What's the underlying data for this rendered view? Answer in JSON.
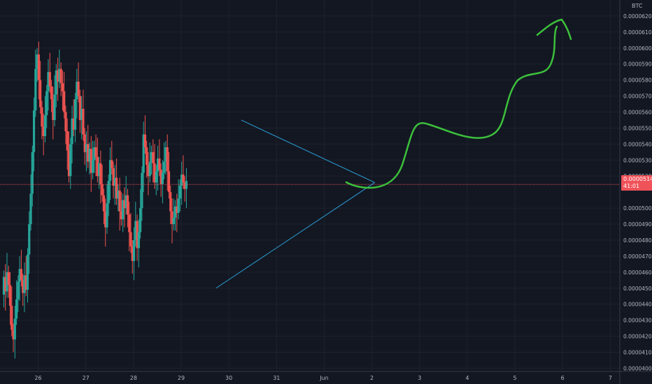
{
  "chart_data": {
    "type": "candlestick",
    "currency_label": "BTC",
    "y_tick_labels": [
      "0.00006200",
      "0.00006100",
      "0.00006000",
      "0.00005900",
      "0.00005800",
      "0.00005700",
      "0.00005600",
      "0.00005500",
      "0.00005400",
      "0.00005300",
      "0.00005200",
      "0.00005000",
      "0.00004900",
      "0.00004800",
      "0.00004700",
      "0.00004600",
      "0.00004500",
      "0.00004400",
      "0.00004300",
      "0.00004200",
      "0.00004100",
      "0.00004000"
    ],
    "y_tick_values": [
      6.2e-05,
      6.1e-05,
      6e-05,
      5.9e-05,
      5.8e-05,
      5.7e-05,
      5.6e-05,
      5.5e-05,
      5.4e-05,
      5.3e-05,
      5.2e-05,
      5e-05,
      4.9e-05,
      4.8e-05,
      4.7e-05,
      4.6e-05,
      4.5e-05,
      4.4e-05,
      4.3e-05,
      4.2e-05,
      4.1e-05,
      4e-05
    ],
    "ylim": [
      3.98e-05,
      6.3e-05
    ],
    "x_tick_labels": [
      "26",
      "27",
      "28",
      "29",
      "30",
      "31",
      "Jun",
      "2",
      "3",
      "4",
      "5",
      "6",
      "7"
    ],
    "x_tick_days": [
      26,
      27,
      28,
      29,
      30,
      31,
      32,
      33,
      34,
      35,
      36,
      37,
      38
    ],
    "xlim": [
      25.2,
      38.2
    ],
    "last_price": {
      "label": "0.00005148",
      "countdown": "41:01",
      "value": 5.148e-05
    },
    "colors": {
      "up": "#26a69a",
      "down": "#ef5350",
      "triangle": "#2a9fd6",
      "arrow": "#3cc03c",
      "price_line": "#f0525a"
    },
    "candles_start_day": 25.28,
    "candles_day_step": 0.0333,
    "candles_oc": [
      [
        4.46e-05,
        4.57e-05
      ],
      [
        4.57e-05,
        4.48e-05
      ],
      [
        4.48e-05,
        4.6e-05
      ],
      [
        4.6e-05,
        4.52e-05
      ],
      [
        4.52e-05,
        4.39e-05
      ],
      [
        4.39e-05,
        4.24e-05
      ],
      [
        4.24e-05,
        4.18e-05
      ],
      [
        4.18e-05,
        4.31e-05
      ],
      [
        4.31e-05,
        4.43e-05
      ],
      [
        4.43e-05,
        4.54e-05
      ],
      [
        4.54e-05,
        4.62e-05
      ],
      [
        4.62e-05,
        4.55e-05
      ],
      [
        4.55e-05,
        4.47e-05
      ],
      [
        4.47e-05,
        4.58e-05
      ],
      [
        4.58e-05,
        4.49e-05
      ],
      [
        4.49e-05,
        4.71e-05
      ],
      [
        4.71e-05,
        4.9e-05
      ],
      [
        4.9e-05,
        5.09e-05
      ],
      [
        5.09e-05,
        5.35e-05
      ],
      [
        5.35e-05,
        5.61e-05
      ],
      [
        5.61e-05,
        5.87e-05
      ],
      [
        5.87e-05,
        5.96e-05
      ],
      [
        5.96e-05,
        5.8e-05
      ],
      [
        5.8e-05,
        5.63e-05
      ],
      [
        5.63e-05,
        5.51e-05
      ],
      [
        5.51e-05,
        5.45e-05
      ],
      [
        5.45e-05,
        5.58e-05
      ],
      [
        5.58e-05,
        5.73e-05
      ],
      [
        5.73e-05,
        5.85e-05
      ],
      [
        5.85e-05,
        5.76e-05
      ],
      [
        5.76e-05,
        5.68e-05
      ],
      [
        5.68e-05,
        5.55e-05
      ],
      [
        5.55e-05,
        5.71e-05
      ],
      [
        5.71e-05,
        5.86e-05
      ],
      [
        5.86e-05,
        5.79e-05
      ],
      [
        5.79e-05,
        5.87e-05
      ],
      [
        5.87e-05,
        5.78e-05
      ],
      [
        5.78e-05,
        5.73e-05
      ],
      [
        5.73e-05,
        5.6e-05
      ],
      [
        5.6e-05,
        5.48e-05
      ],
      [
        5.48e-05,
        5.36e-05
      ],
      [
        5.36e-05,
        5.2e-05
      ],
      [
        5.2e-05,
        5.4e-05
      ],
      [
        5.4e-05,
        5.56e-05
      ],
      [
        5.56e-05,
        5.49e-05
      ],
      [
        5.49e-05,
        5.68e-05
      ],
      [
        5.68e-05,
        5.79e-05
      ],
      [
        5.79e-05,
        5.7e-05
      ],
      [
        5.7e-05,
        5.55e-05
      ],
      [
        5.55e-05,
        5.62e-05
      ],
      [
        5.62e-05,
        5.46e-05
      ],
      [
        5.46e-05,
        5.35e-05
      ],
      [
        5.35e-05,
        5.4e-05
      ],
      [
        5.4e-05,
        5.29e-05
      ],
      [
        5.29e-05,
        5.37e-05
      ],
      [
        5.37e-05,
        5.22e-05
      ],
      [
        5.22e-05,
        5.3e-05
      ],
      [
        5.3e-05,
        5.38e-05
      ],
      [
        5.38e-05,
        5.32e-05
      ],
      [
        5.32e-05,
        5.2e-05
      ],
      [
        5.2e-05,
        5.28e-05
      ],
      [
        5.28e-05,
        5.15e-05
      ],
      [
        5.15e-05,
        5.08e-05
      ],
      [
        5.08e-05,
        4.98e-05
      ],
      [
        4.98e-05,
        4.88e-05
      ],
      [
        4.88e-05,
        5.03e-05
      ],
      [
        5.03e-05,
        5.17e-05
      ],
      [
        5.17e-05,
        5.3e-05
      ],
      [
        5.3e-05,
        5.25e-05
      ],
      [
        5.25e-05,
        5.14e-05
      ],
      [
        5.14e-05,
        5.19e-05
      ],
      [
        5.19e-05,
        5.06e-05
      ],
      [
        5.06e-05,
        5.11e-05
      ],
      [
        5.11e-05,
        4.98e-05
      ],
      [
        4.98e-05,
        4.93e-05
      ],
      [
        4.93e-05,
        5.05e-05
      ],
      [
        5.05e-05,
        5e-05
      ],
      [
        5e-05,
        5.08e-05
      ],
      [
        5.08e-05,
        4.96e-05
      ],
      [
        4.96e-05,
        4.85e-05
      ],
      [
        4.85e-05,
        4.76e-05
      ],
      [
        4.76e-05,
        4.67e-05
      ],
      [
        4.67e-05,
        4.8e-05
      ],
      [
        4.8e-05,
        4.92e-05
      ],
      [
        4.92e-05,
        4.75e-05
      ],
      [
        4.75e-05,
        4.85e-05
      ],
      [
        4.85e-05,
        5e-05
      ],
      [
        5e-05,
        5.22e-05
      ],
      [
        5.22e-05,
        5.46e-05
      ],
      [
        5.46e-05,
        5.38e-05
      ],
      [
        5.38e-05,
        5.27e-05
      ],
      [
        5.27e-05,
        5.2e-05
      ],
      [
        5.2e-05,
        5.29e-05
      ],
      [
        5.29e-05,
        5.35e-05
      ],
      [
        5.35e-05,
        5.28e-05
      ],
      [
        5.28e-05,
        5.16e-05
      ],
      [
        5.16e-05,
        5.23e-05
      ],
      [
        5.23e-05,
        5.31e-05
      ],
      [
        5.31e-05,
        5.24e-05
      ],
      [
        5.24e-05,
        5.15e-05
      ],
      [
        5.15e-05,
        5.22e-05
      ],
      [
        5.22e-05,
        5.29e-05
      ],
      [
        5.29e-05,
        5.38e-05
      ],
      [
        5.38e-05,
        5.23e-05
      ],
      [
        5.23e-05,
        5.1e-05
      ],
      [
        5.1e-05,
        4.98e-05
      ],
      [
        4.98e-05,
        4.9e-05
      ],
      [
        4.9e-05,
        4.94e-05
      ],
      [
        4.94e-05,
        5.01e-05
      ],
      [
        5.01e-05,
        4.97e-05
      ],
      [
        4.97e-05,
        5.06e-05
      ],
      [
        5.06e-05,
        5.14e-05
      ],
      [
        5.14e-05,
        5.21e-05
      ],
      [
        5.21e-05,
        5.16e-05
      ],
      [
        5.16e-05,
        5.12e-05
      ],
      [
        5.12e-05,
        5.17e-05
      ]
    ]
  }
}
